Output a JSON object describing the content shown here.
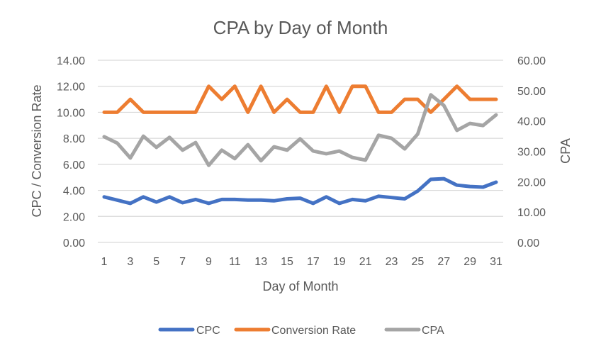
{
  "chart_data": {
    "type": "line",
    "title": "CPA by Day of Month",
    "xlabel": "Day of Month",
    "ylabel": "CPC / Conversion Rate",
    "y2label": "CPA",
    "x": [
      1,
      2,
      3,
      4,
      5,
      6,
      7,
      8,
      9,
      10,
      11,
      12,
      13,
      14,
      15,
      16,
      17,
      18,
      19,
      20,
      21,
      22,
      23,
      24,
      25,
      26,
      27,
      28,
      29,
      30,
      31
    ],
    "x_tick_labels": [
      "1",
      "3",
      "5",
      "7",
      "9",
      "11",
      "13",
      "15",
      "17",
      "19",
      "21",
      "23",
      "25",
      "27",
      "29",
      "31"
    ],
    "ylim": [
      0,
      14
    ],
    "y_ticks": [
      "0.00",
      "2.00",
      "4.00",
      "6.00",
      "8.00",
      "10.00",
      "12.00",
      "14.00"
    ],
    "y2lim": [
      0,
      60
    ],
    "y2_ticks": [
      "0.00",
      "10.00",
      "20.00",
      "30.00",
      "40.00",
      "50.00",
      "60.00"
    ],
    "grid": true,
    "legend_position": "bottom",
    "series": [
      {
        "name": "CPC",
        "axis": "left",
        "color": "#4472C4",
        "values": [
          3.5,
          3.25,
          3.0,
          3.5,
          3.1,
          3.5,
          3.05,
          3.3,
          3.0,
          3.3,
          3.3,
          3.25,
          3.25,
          3.2,
          3.35,
          3.4,
          3.0,
          3.5,
          3.0,
          3.3,
          3.2,
          3.55,
          3.45,
          3.35,
          3.95,
          4.85,
          4.9,
          4.4,
          4.3,
          4.25,
          4.63
        ]
      },
      {
        "name": "Conversion Rate",
        "axis": "left",
        "color": "#ED7D31",
        "values": [
          10,
          10,
          11,
          10,
          10,
          10,
          10,
          10,
          12,
          11,
          12,
          10,
          12,
          10,
          11,
          10,
          10,
          12,
          10,
          12,
          12,
          10,
          10,
          11,
          11,
          10,
          11,
          12,
          11,
          11,
          11
        ]
      },
      {
        "name": "CPA",
        "axis": "right",
        "color": "#A5A5A5",
        "values": [
          34.8,
          32.7,
          27.8,
          35.0,
          31.3,
          34.6,
          30.4,
          32.9,
          25.4,
          30.4,
          27.6,
          32.2,
          26.9,
          31.5,
          30.4,
          34.1,
          30.1,
          29.2,
          30.1,
          28.0,
          27.1,
          35.3,
          34.3,
          30.8,
          35.7,
          48.6,
          45.1,
          36.9,
          39.2,
          38.5,
          42.0
        ]
      }
    ]
  }
}
